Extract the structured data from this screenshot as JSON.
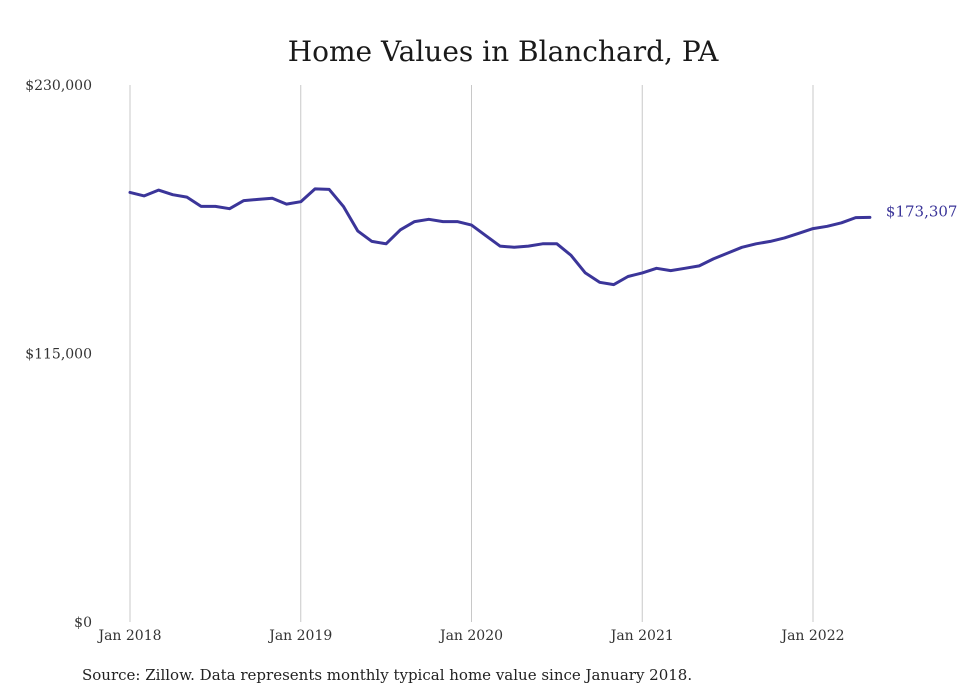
{
  "source_note": "Source: Zillow. Data represents monthly typical home value since January 2018.",
  "colors": {
    "line": "#3b3599",
    "grid": "#c8c8c8",
    "text": "#333333"
  },
  "chart_data": {
    "type": "line",
    "title": "Home Values in Blanchard, PA",
    "xlabel": "",
    "ylabel": "",
    "ylim": [
      0,
      230000
    ],
    "yticks": [
      0,
      115000,
      230000
    ],
    "ytick_labels": [
      "$0",
      "$115,000",
      "$230,000"
    ],
    "xticks": [
      "2018-01",
      "2019-01",
      "2020-01",
      "2021-01",
      "2022-01"
    ],
    "xtick_labels": [
      "Jan 2018",
      "Jan 2019",
      "Jan 2020",
      "Jan 2021",
      "Jan 2022"
    ],
    "grid": "vertical",
    "end_label": "$173,307",
    "series": [
      {
        "name": "",
        "x": [
          "2018-01",
          "2018-02",
          "2018-03",
          "2018-04",
          "2018-05",
          "2018-06",
          "2018-07",
          "2018-08",
          "2018-09",
          "2018-10",
          "2018-11",
          "2018-12",
          "2019-01",
          "2019-02",
          "2019-03",
          "2019-04",
          "2019-05",
          "2019-06",
          "2019-07",
          "2019-08",
          "2019-09",
          "2019-10",
          "2019-11",
          "2019-12",
          "2020-01",
          "2020-02",
          "2020-03",
          "2020-04",
          "2020-05",
          "2020-06",
          "2020-07",
          "2020-08",
          "2020-09",
          "2020-10",
          "2020-11",
          "2020-12",
          "2021-01",
          "2021-02",
          "2021-03",
          "2021-04",
          "2021-05",
          "2021-06",
          "2021-07",
          "2021-08",
          "2021-09",
          "2021-10",
          "2021-11",
          "2021-12",
          "2022-01",
          "2022-02",
          "2022-03",
          "2022-04",
          "2022-05"
        ],
        "values": [
          184000,
          182500,
          185000,
          183000,
          182000,
          178000,
          178000,
          177000,
          180500,
          181000,
          181500,
          179000,
          180000,
          185500,
          185300,
          178000,
          167500,
          163000,
          162000,
          168000,
          171500,
          172500,
          171500,
          171500,
          170000,
          165500,
          161000,
          160500,
          161000,
          162000,
          162000,
          157000,
          149500,
          145500,
          144500,
          148000,
          149500,
          151500,
          150500,
          151500,
          152500,
          155500,
          158000,
          160500,
          162000,
          163000,
          164500,
          166500,
          168500,
          169500,
          171000,
          173200,
          173307
        ]
      }
    ]
  }
}
